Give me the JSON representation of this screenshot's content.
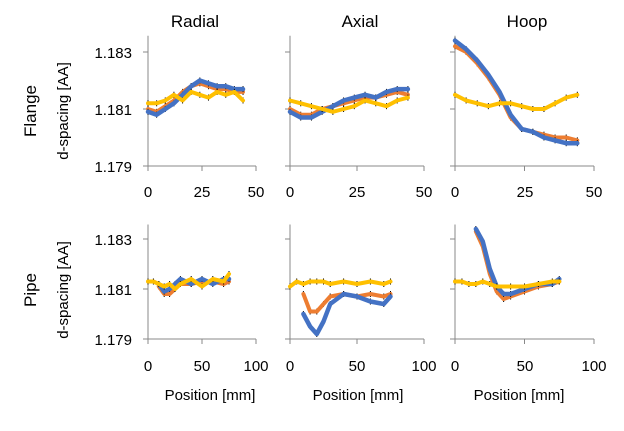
{
  "chart_data": {
    "type": "line",
    "column_titles": [
      "Radial",
      "Axial",
      "Hoop"
    ],
    "row_labels": [
      "Flange",
      "Pipe"
    ],
    "ylabel": "d-spacing [AA]",
    "xlabel": "Position [mm]",
    "ytick_labels": [
      "1.183",
      "1.181",
      "1.179"
    ],
    "yticks": [
      1.183,
      1.181,
      1.179
    ],
    "ylim": [
      1.179,
      1.1835
    ],
    "rows": {
      "Flange": {
        "xlim": [
          0,
          50
        ],
        "xticks": [
          0,
          25,
          50
        ],
        "xtick_labels": [
          "0",
          "25",
          "50"
        ]
      },
      "Pipe": {
        "xlim": [
          0,
          100
        ],
        "xticks": [
          0,
          50,
          100
        ],
        "xtick_labels": [
          "0",
          "50",
          "100"
        ]
      }
    },
    "series_colors": [
      "#ED7D31",
      "#4472C4",
      "#FFC000"
    ],
    "panels": [
      {
        "row": "Flange",
        "column": "Radial",
        "series": [
          {
            "color": "#ED7D31",
            "x": [
              0,
              4,
              8,
              12,
              16,
              20,
              24,
              28,
              32,
              36,
              40,
              44
            ],
            "y": [
              1.181,
              1.1809,
              1.1811,
              1.1813,
              1.1816,
              1.1818,
              1.1819,
              1.1818,
              1.1817,
              1.1817,
              1.1816,
              1.1816
            ]
          },
          {
            "color": "#4472C4",
            "x": [
              0,
              4,
              8,
              12,
              16,
              20,
              24,
              28,
              32,
              36,
              40,
              44
            ],
            "y": [
              1.1809,
              1.1808,
              1.181,
              1.1812,
              1.1815,
              1.1818,
              1.182,
              1.1819,
              1.1818,
              1.1818,
              1.1817,
              1.1817
            ]
          },
          {
            "color": "#FFC000",
            "x": [
              0,
              4,
              8,
              12,
              16,
              20,
              24,
              28,
              32,
              36,
              40,
              44
            ],
            "y": [
              1.1812,
              1.1812,
              1.1813,
              1.1815,
              1.1813,
              1.1816,
              1.1815,
              1.1814,
              1.1816,
              1.1815,
              1.1816,
              1.1813
            ]
          }
        ]
      },
      {
        "row": "Flange",
        "column": "Axial",
        "series": [
          {
            "color": "#ED7D31",
            "x": [
              0,
              4,
              8,
              12,
              16,
              20,
              24,
              28,
              32,
              36,
              40,
              44
            ],
            "y": [
              1.181,
              1.1808,
              1.1808,
              1.181,
              1.1811,
              1.1812,
              1.1813,
              1.1814,
              1.1814,
              1.1815,
              1.1816,
              1.1815
            ]
          },
          {
            "color": "#4472C4",
            "x": [
              0,
              4,
              8,
              12,
              16,
              20,
              24,
              28,
              32,
              36,
              40,
              44
            ],
            "y": [
              1.1809,
              1.1807,
              1.1807,
              1.1809,
              1.1811,
              1.1813,
              1.1814,
              1.1815,
              1.1814,
              1.1816,
              1.1817,
              1.1817
            ]
          },
          {
            "color": "#FFC000",
            "x": [
              0,
              4,
              8,
              12,
              16,
              20,
              24,
              28,
              32,
              36,
              40,
              44
            ],
            "y": [
              1.1813,
              1.1812,
              1.1811,
              1.181,
              1.1809,
              1.181,
              1.1811,
              1.1813,
              1.1812,
              1.1811,
              1.1813,
              1.1814
            ]
          }
        ]
      },
      {
        "row": "Flange",
        "column": "Hoop",
        "series": [
          {
            "color": "#ED7D31",
            "x": [
              0,
              4,
              8,
              12,
              16,
              20,
              24,
              28,
              32,
              36,
              40,
              44
            ],
            "y": [
              1.1832,
              1.183,
              1.1826,
              1.1821,
              1.1815,
              1.1807,
              1.1803,
              1.1802,
              1.1801,
              1.18,
              1.18,
              1.1799
            ]
          },
          {
            "color": "#4472C4",
            "x": [
              0,
              4,
              8,
              12,
              16,
              20,
              24,
              28,
              32,
              36,
              40,
              44
            ],
            "y": [
              1.1834,
              1.1831,
              1.1827,
              1.1822,
              1.1816,
              1.1808,
              1.1803,
              1.1802,
              1.18,
              1.1799,
              1.1798,
              1.1798
            ]
          },
          {
            "color": "#FFC000",
            "x": [
              0,
              4,
              8,
              12,
              16,
              20,
              24,
              28,
              32,
              36,
              40,
              44
            ],
            "y": [
              1.1815,
              1.1813,
              1.1812,
              1.1811,
              1.1812,
              1.1812,
              1.1811,
              1.181,
              1.181,
              1.1812,
              1.1814,
              1.1815
            ]
          }
        ]
      },
      {
        "row": "Pipe",
        "column": "Radial",
        "series": [
          {
            "color": "#ED7D31",
            "x": [
              10,
              15,
              20,
              25,
              30,
              40,
              50,
              60,
              70,
              75
            ],
            "y": [
              1.1811,
              1.1808,
              1.1808,
              1.181,
              1.1812,
              1.1812,
              1.1813,
              1.1813,
              1.1812,
              1.1813
            ]
          },
          {
            "color": "#4472C4",
            "x": [
              10,
              15,
              20,
              25,
              30,
              40,
              50,
              60,
              70,
              75
            ],
            "y": [
              1.1812,
              1.1809,
              1.181,
              1.1812,
              1.1814,
              1.1812,
              1.1814,
              1.1812,
              1.1814,
              1.1814
            ]
          },
          {
            "color": "#FFC000",
            "x": [
              0,
              5,
              10,
              15,
              20,
              25,
              30,
              40,
              50,
              60,
              70,
              75
            ],
            "y": [
              1.1813,
              1.1813,
              1.1812,
              1.1811,
              1.1812,
              1.181,
              1.1812,
              1.1814,
              1.1811,
              1.1814,
              1.1813,
              1.1816
            ]
          }
        ]
      },
      {
        "row": "Pipe",
        "column": "Axial",
        "series": [
          {
            "color": "#ED7D31",
            "x": [
              10,
              15,
              20,
              25,
              30,
              40,
              50,
              60,
              70,
              75
            ],
            "y": [
              1.1808,
              1.1801,
              1.1801,
              1.1804,
              1.1807,
              1.1808,
              1.1807,
              1.1808,
              1.1807,
              1.1808
            ]
          },
          {
            "color": "#4472C4",
            "x": [
              10,
              15,
              20,
              25,
              30,
              40,
              50,
              60,
              70,
              75
            ],
            "y": [
              1.18,
              1.1795,
              1.1792,
              1.1797,
              1.1804,
              1.1808,
              1.1807,
              1.1805,
              1.1804,
              1.1807
            ]
          },
          {
            "color": "#FFC000",
            "x": [
              0,
              5,
              10,
              15,
              20,
              25,
              30,
              40,
              50,
              60,
              70,
              75
            ],
            "y": [
              1.1811,
              1.1813,
              1.1812,
              1.1813,
              1.1813,
              1.1813,
              1.1812,
              1.1813,
              1.1812,
              1.1813,
              1.1812,
              1.1813
            ]
          }
        ]
      },
      {
        "row": "Pipe",
        "column": "Hoop",
        "series": [
          {
            "color": "#ED7D31",
            "x": [
              15,
              20,
              25,
              30,
              35,
              40,
              50,
              60,
              70,
              75
            ],
            "y": [
              1.1833,
              1.1827,
              1.1816,
              1.1809,
              1.1806,
              1.1807,
              1.1809,
              1.1811,
              1.1812,
              1.1813
            ]
          },
          {
            "color": "#4472C4",
            "x": [
              15,
              20,
              25,
              30,
              35,
              40,
              50,
              60,
              70,
              75
            ],
            "y": [
              1.1834,
              1.1829,
              1.1818,
              1.1811,
              1.1808,
              1.1808,
              1.181,
              1.1812,
              1.1812,
              1.1814
            ]
          },
          {
            "color": "#FFC000",
            "x": [
              0,
              5,
              10,
              15,
              20,
              25,
              30,
              40,
              50,
              60,
              70,
              75
            ],
            "y": [
              1.1813,
              1.1813,
              1.1812,
              1.1812,
              1.1813,
              1.1812,
              1.1811,
              1.1811,
              1.1811,
              1.1812,
              1.1813,
              1.1813
            ]
          }
        ]
      }
    ]
  }
}
